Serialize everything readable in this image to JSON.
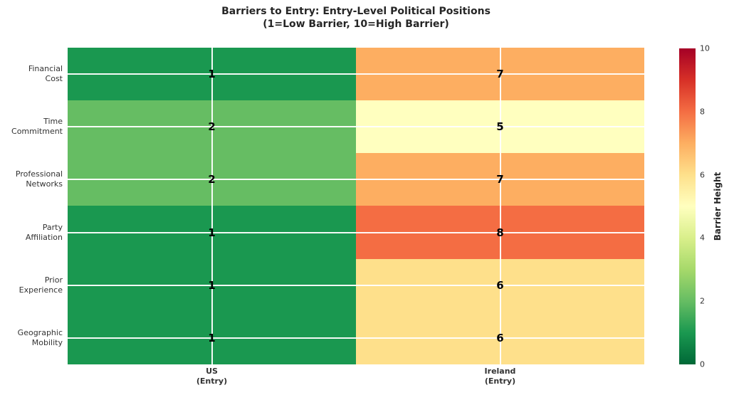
{
  "chart_data": {
    "type": "heatmap",
    "title": "Barriers to Entry: Entry-Level Political Positions",
    "subtitle": "(1=Low Barrier, 10=High Barrier)",
    "row_labels": [
      [
        "Financial",
        "Cost"
      ],
      [
        "Time",
        "Commitment"
      ],
      [
        "Professional",
        "Networks"
      ],
      [
        "Party",
        "Affiliation"
      ],
      [
        "Prior",
        "Experience"
      ],
      [
        "Geographic",
        "Mobility"
      ]
    ],
    "col_labels": [
      [
        "US",
        "(Entry)"
      ],
      [
        "Ireland",
        "(Entry)"
      ]
    ],
    "values": [
      [
        1,
        7
      ],
      [
        2,
        5
      ],
      [
        2,
        7
      ],
      [
        1,
        8
      ],
      [
        1,
        6
      ],
      [
        1,
        6
      ]
    ],
    "cell_colors": [
      [
        "#1a9850",
        "#fdae61"
      ],
      [
        "#66bd63",
        "#ffffbf"
      ],
      [
        "#66bd63",
        "#fdae61"
      ],
      [
        "#1a9850",
        "#f46d43"
      ],
      [
        "#1a9850",
        "#fee08b"
      ],
      [
        "#1a9850",
        "#fee08b"
      ]
    ],
    "value_range": [
      0,
      10
    ],
    "colormap": "RdYlGn_r",
    "grid": true,
    "gridline_color": "#ffffff",
    "colorbar": {
      "label": "Barrier Height",
      "min": 0,
      "max": 10,
      "ticks": [
        0,
        2,
        4,
        6,
        8,
        10
      ],
      "gradient_stops_bottom_to_top": [
        "#006837",
        "#1a9850",
        "#66bd63",
        "#a6d96a",
        "#d9ef8b",
        "#ffffbf",
        "#fee08b",
        "#fdae61",
        "#f46d43",
        "#d73027",
        "#a50026"
      ]
    }
  }
}
